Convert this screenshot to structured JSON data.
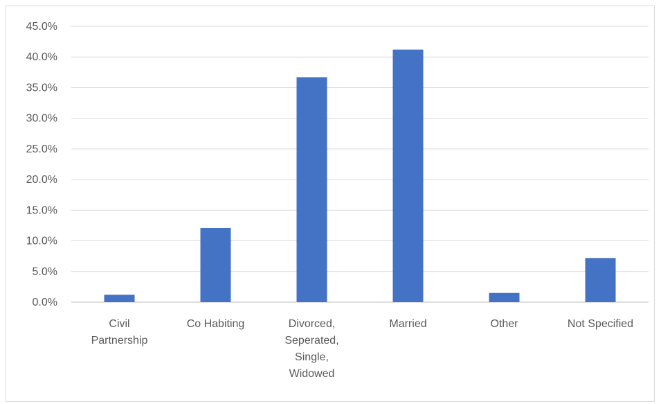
{
  "chart_data": {
    "type": "bar",
    "title": "",
    "xlabel": "",
    "ylabel": "",
    "categories": [
      [
        "Civil",
        "Partnership"
      ],
      [
        "Co Habiting"
      ],
      [
        "Divorced,",
        "Seperated,",
        "Single,",
        "Widowed"
      ],
      [
        "Married"
      ],
      [
        "Other"
      ],
      [
        "Not Specified"
      ]
    ],
    "values": [
      1.2,
      12.1,
      36.7,
      41.2,
      1.5,
      7.2
    ],
    "ylim": [
      0,
      45
    ],
    "yticks": [
      "0.0%",
      "5.0%",
      "10.0%",
      "15.0%",
      "20.0%",
      "25.0%",
      "30.0%",
      "35.0%",
      "40.0%",
      "45.0%"
    ],
    "grid": true,
    "legend": "none",
    "bar_color": "#4472C4",
    "grid_color": "#d9d9d9"
  }
}
